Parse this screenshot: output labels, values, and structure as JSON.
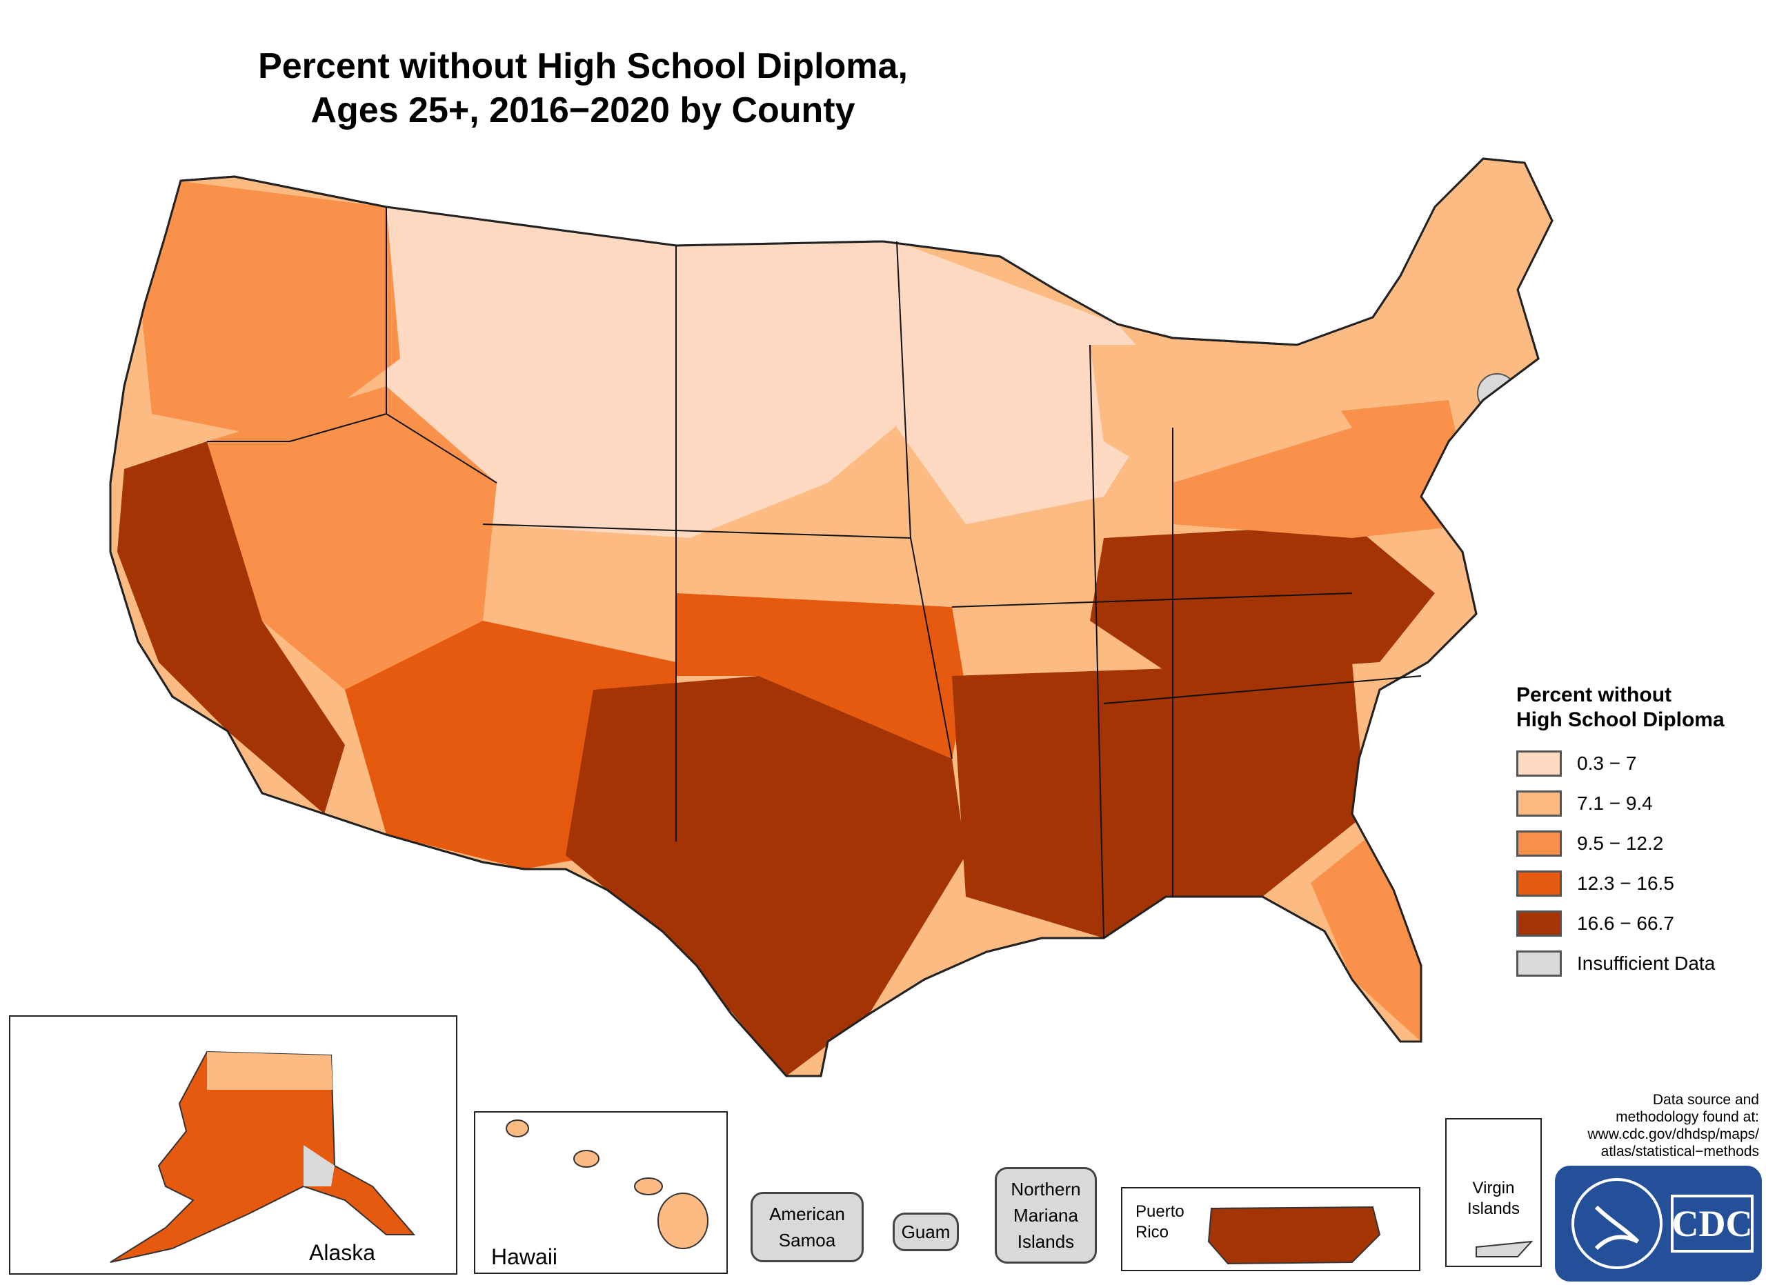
{
  "map": {
    "title_line1": "Percent without High School Diploma,",
    "title_line2": "Ages 25+, 2016−2020 by County"
  },
  "legend": {
    "title_line1": "Percent without",
    "title_line2": "High School Diploma",
    "classes": [
      {
        "label": "0.3 − 7",
        "color": "#fdd9c2"
      },
      {
        "label": "7.1 − 9.4",
        "color": "#fdbb84"
      },
      {
        "label": "9.5 − 12.2",
        "color": "#f9914a"
      },
      {
        "label": "12.3 − 16.5",
        "color": "#e55a0e"
      },
      {
        "label": "16.6 − 66.7",
        "color": "#a43403"
      },
      {
        "label": "Insufficient Data",
        "color": "#d9d9d9"
      }
    ]
  },
  "insets": {
    "alaska": "Alaska",
    "hawaii": "Hawaii",
    "puerto_rico_line1": "Puerto",
    "puerto_rico_line2": "Rico",
    "virgin_islands_line1": "Virgin",
    "virgin_islands_line2": "Islands"
  },
  "territories": {
    "american_samoa_line1": "American",
    "american_samoa_line2": "Samoa",
    "guam": "Guam",
    "northern_mariana_line1": "Northern",
    "northern_mariana_line2": "Mariana",
    "northern_mariana_line3": "Islands"
  },
  "source_note": {
    "line1": "Data source and",
    "line2": "methodology found at:",
    "line3": "www.cdc.gov/dhdsp/maps/",
    "line4": "atlas/statistical−methods"
  },
  "logo": {
    "text": "CDC",
    "colors": {
      "background": "#24509a",
      "foreground": "#ffffff"
    }
  },
  "regional_shading": [
    {
      "region": "northern-plains",
      "class": 0
    },
    {
      "region": "upper-midwest",
      "class": 0
    },
    {
      "region": "pacific-northwest",
      "class": 2
    },
    {
      "region": "california",
      "class": 4
    },
    {
      "region": "great-basin",
      "class": 2
    },
    {
      "region": "southwest",
      "class": 3
    },
    {
      "region": "texas",
      "class": 4
    },
    {
      "region": "southern-plains",
      "class": 3
    },
    {
      "region": "deep-south",
      "class": 4
    },
    {
      "region": "appalachia",
      "class": 4
    },
    {
      "region": "mid-atlantic",
      "class": 2
    },
    {
      "region": "great-lakes",
      "class": 1
    },
    {
      "region": "new-england",
      "class": 1
    },
    {
      "region": "florida",
      "class": 2
    },
    {
      "region": "alaska",
      "class": 3
    },
    {
      "region": "hawaii",
      "class": 1
    },
    {
      "region": "puerto-rico",
      "class": 4
    }
  ]
}
